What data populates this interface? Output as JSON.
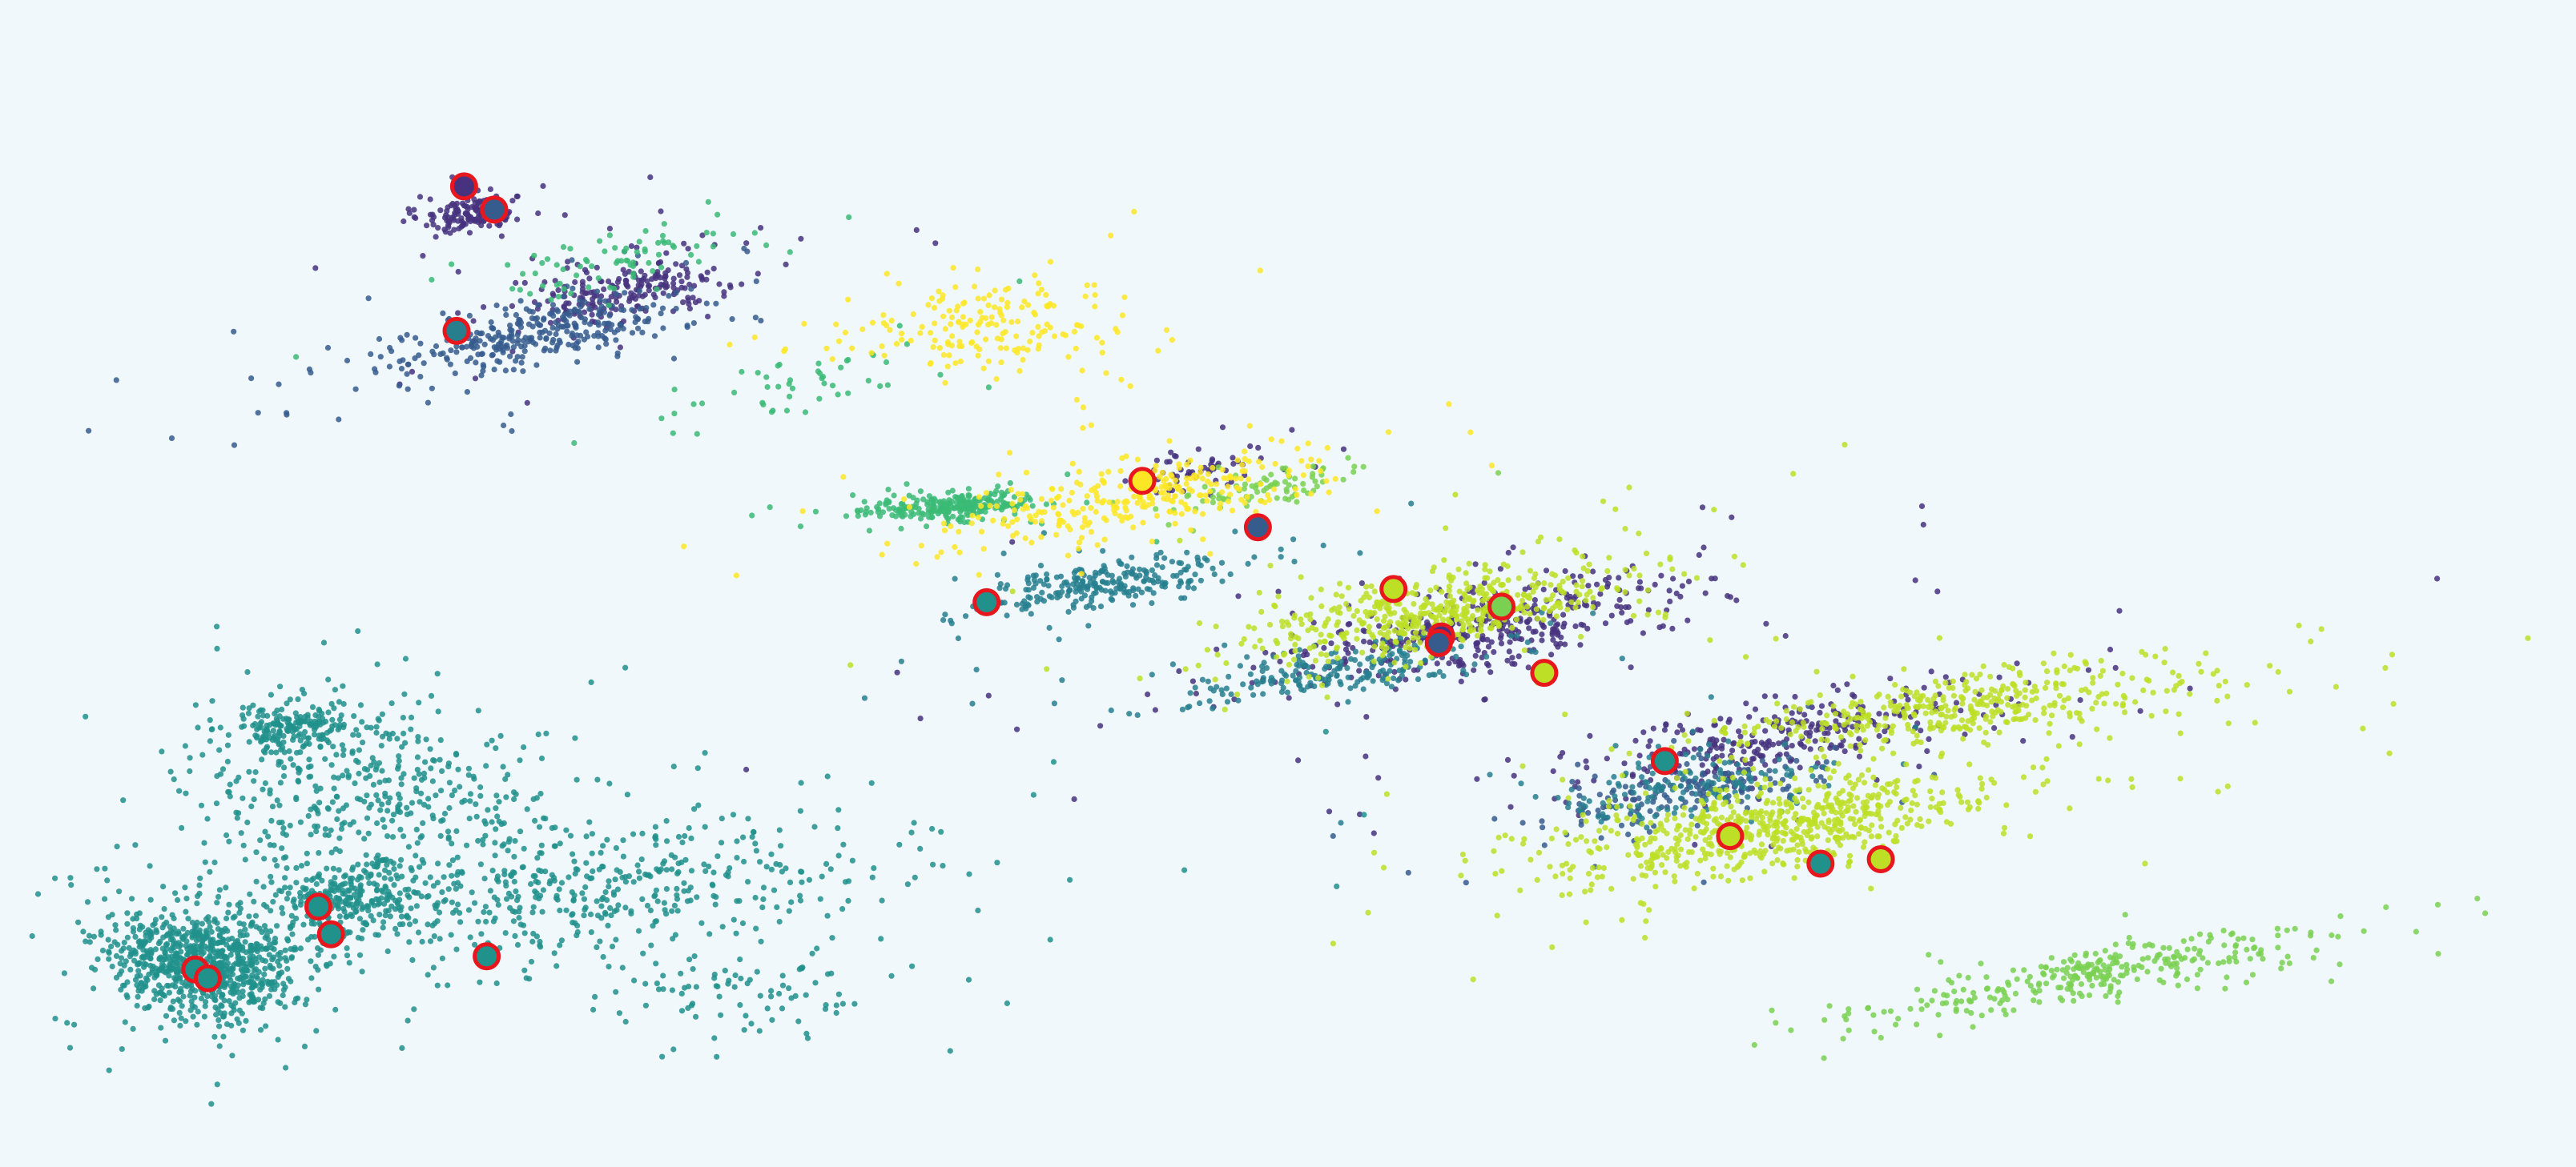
{
  "chart_data": {
    "type": "scatter",
    "title": "",
    "xlabel": "",
    "ylabel": "",
    "xlim": [
      0,
      100
    ],
    "ylim": [
      0,
      100
    ],
    "grid": false,
    "legend": "none",
    "background": "#f0f8fc",
    "highlight_ring_color": "#e8171e",
    "series": [
      {
        "color": "#46327e",
        "clusters": [
          {
            "c": [
              17.6,
              83.7
            ],
            "sx": 1.0,
            "sy": 0.7,
            "angle": -25,
            "n": 140
          },
          {
            "c": [
              23.5,
              76.5
            ],
            "sx": 2.2,
            "sy": 1.2,
            "angle": -30,
            "n": 230
          },
          {
            "c": [
              58.0,
              46.0
            ],
            "sx": 4.5,
            "sy": 1.6,
            "angle": -27,
            "n": 420
          },
          {
            "c": [
              70.0,
              36.0
            ],
            "sx": 4.5,
            "sy": 1.5,
            "angle": -27,
            "n": 320
          },
          {
            "c": [
              46.5,
              60.5
            ],
            "sx": 1.6,
            "sy": 0.9,
            "angle": -25,
            "n": 60
          }
        ]
      },
      {
        "color": "#365c8d",
        "clusters": [
          {
            "c": [
              20.0,
              72.5
            ],
            "sx": 3.2,
            "sy": 1.3,
            "angle": -28,
            "n": 330
          },
          {
            "c": [
              66.0,
              31.0
            ],
            "sx": 3.0,
            "sy": 1.2,
            "angle": -25,
            "n": 160
          }
        ]
      },
      {
        "color": "#277f8e",
        "clusters": [
          {
            "c": [
              43.0,
              50.0
            ],
            "sx": 2.6,
            "sy": 1.0,
            "angle": -20,
            "n": 260
          },
          {
            "c": [
              52.0,
              42.0
            ],
            "sx": 3.0,
            "sy": 1.0,
            "angle": -20,
            "n": 200
          },
          {
            "c": [
              66.0,
              31.5
            ],
            "sx": 2.4,
            "sy": 1.2,
            "angle": -25,
            "n": 150
          }
        ]
      },
      {
        "color": "#21918c",
        "clusters": [
          {
            "c": [
              7.0,
              15.5
            ],
            "sx": 1.8,
            "sy": 2.3,
            "angle": -20,
            "n": 850
          },
          {
            "c": [
              12.5,
              21.5
            ],
            "sx": 1.8,
            "sy": 1.4,
            "angle": -35,
            "n": 260
          },
          {
            "c": [
              13.5,
              31.5
            ],
            "sx": 3.5,
            "sy": 4.0,
            "angle": -20,
            "n": 420
          },
          {
            "c": [
              21.0,
              22.0
            ],
            "sx": 6.5,
            "sy": 3.0,
            "angle": -15,
            "n": 520
          },
          {
            "c": [
              10.5,
              37.0
            ],
            "sx": 1.2,
            "sy": 0.9,
            "angle": -35,
            "n": 180
          },
          {
            "c": [
              28.0,
              13.5
            ],
            "sx": 3.0,
            "sy": 2.2,
            "angle": -10,
            "n": 90
          }
        ]
      },
      {
        "color": "#3bbb75",
        "clusters": [
          {
            "c": [
              36.5,
              57.0
            ],
            "sx": 1.7,
            "sy": 0.6,
            "angle": -8,
            "n": 270
          },
          {
            "c": [
              23.5,
              79.5
            ],
            "sx": 3.2,
            "sy": 1.0,
            "angle": -32,
            "n": 80
          },
          {
            "c": [
              30.0,
              68.0
            ],
            "sx": 2.5,
            "sy": 1.2,
            "angle": -30,
            "n": 50
          }
        ]
      },
      {
        "color": "#7ad151",
        "clusters": [
          {
            "c": [
              82.0,
              14.5
            ],
            "sx": 4.5,
            "sy": 1.0,
            "angle": -22,
            "n": 320
          },
          {
            "c": [
              49.0,
              58.5
            ],
            "sx": 1.8,
            "sy": 0.8,
            "angle": -25,
            "n": 80
          }
        ]
      },
      {
        "color": "#bddf26",
        "clusters": [
          {
            "c": [
              56.0,
              47.5
            ],
            "sx": 3.8,
            "sy": 1.5,
            "angle": -25,
            "n": 520
          },
          {
            "c": [
              69.5,
              28.0
            ],
            "sx": 4.2,
            "sy": 1.7,
            "angle": -22,
            "n": 680
          },
          {
            "c": [
              77.0,
              39.0
            ],
            "sx": 5.0,
            "sy": 1.4,
            "angle": -20,
            "n": 420
          }
        ]
      },
      {
        "color": "#fde725",
        "clusters": [
          {
            "c": [
              38.0,
              73.0
            ],
            "sx": 2.8,
            "sy": 2.2,
            "angle": -30,
            "n": 190
          },
          {
            "c": [
              44.0,
              58.0
            ],
            "sx": 3.8,
            "sy": 1.6,
            "angle": -25,
            "n": 300
          }
        ]
      }
    ],
    "highlighted_points": [
      {
        "x": 17.2,
        "y": 86.0,
        "fill": "#46327e"
      },
      {
        "x": 18.4,
        "y": 83.9,
        "fill": "#365c8d"
      },
      {
        "x": 16.9,
        "y": 72.9,
        "fill": "#277f8e"
      },
      {
        "x": 38.0,
        "y": 48.3,
        "fill": "#21918c"
      },
      {
        "x": 44.2,
        "y": 59.3,
        "fill": "#fde725"
      },
      {
        "x": 48.8,
        "y": 55.1,
        "fill": "#365c8d"
      },
      {
        "x": 54.2,
        "y": 49.5,
        "fill": "#bddf26"
      },
      {
        "x": 58.5,
        "y": 47.9,
        "fill": "#7ad151"
      },
      {
        "x": 56.1,
        "y": 45.2,
        "fill": "#46327e"
      },
      {
        "x": 56.0,
        "y": 44.6,
        "fill": "#365c8d"
      },
      {
        "x": 60.2,
        "y": 41.9,
        "fill": "#bddf26"
      },
      {
        "x": 65.0,
        "y": 33.9,
        "fill": "#21918c"
      },
      {
        "x": 67.6,
        "y": 27.1,
        "fill": "#bddf26"
      },
      {
        "x": 71.2,
        "y": 24.6,
        "fill": "#21918c"
      },
      {
        "x": 73.6,
        "y": 25.0,
        "fill": "#bddf26"
      },
      {
        "x": 11.4,
        "y": 20.7,
        "fill": "#21918c"
      },
      {
        "x": 11.9,
        "y": 18.2,
        "fill": "#21918c"
      },
      {
        "x": 18.1,
        "y": 16.2,
        "fill": "#21918c"
      },
      {
        "x": 6.5,
        "y": 15.0,
        "fill": "#21918c"
      },
      {
        "x": 7.0,
        "y": 14.2,
        "fill": "#21918c"
      }
    ]
  }
}
